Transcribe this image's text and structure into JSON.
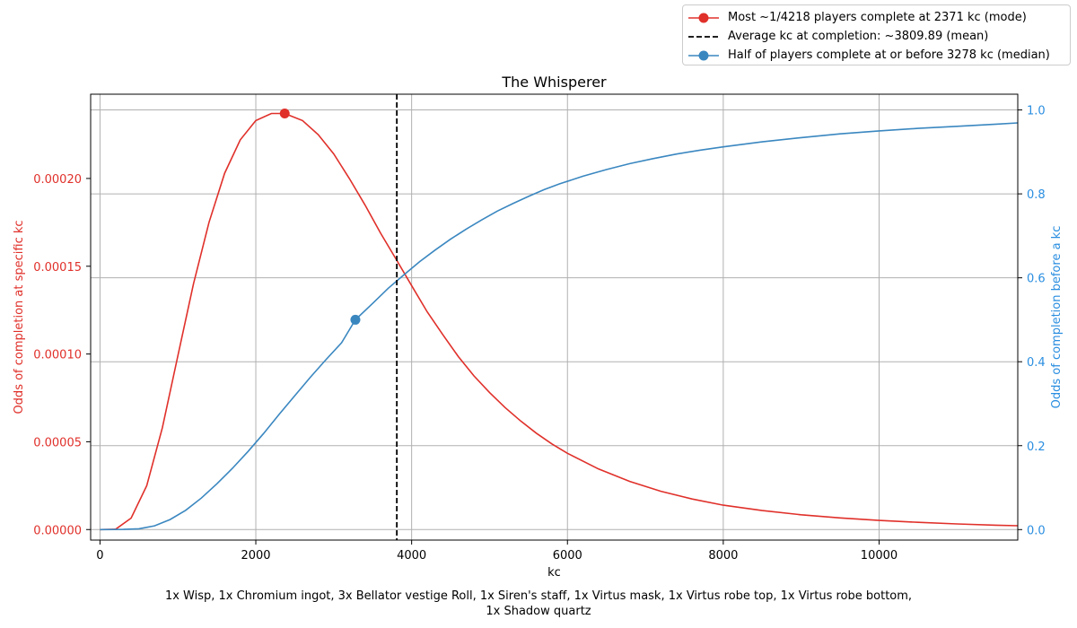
{
  "chart_data": {
    "type": "line",
    "title": "The Whisperer",
    "xlabel": "kc",
    "ylabel_left": "Odds of completion at specific kc",
    "ylabel_right": "Odds of completion before a kc",
    "xlim": [
      -120,
      11780
    ],
    "ylim_left": [
      -6e-06,
      0.000248
    ],
    "ylim_right": [
      -0.025,
      1.0375
    ],
    "x_ticks": [
      "0",
      "2000",
      "4000",
      "6000",
      "8000",
      "10000"
    ],
    "y_left_ticks": [
      "0.00000",
      "0.00005",
      "0.00010",
      "0.00015",
      "0.00020"
    ],
    "y_right_ticks": [
      "0.0",
      "0.2",
      "0.4",
      "0.6",
      "0.8",
      "1.0"
    ],
    "grid": true,
    "legend_position": "top-right, above plot",
    "colors": {
      "pmf": "#e0302a",
      "cdf": "#3a87c0",
      "mean": "#000000",
      "left_axis": "#e0302a",
      "right_axis": "#2a8ee0"
    },
    "series": [
      {
        "name": "Most ~1/4218 players complete at 2371 kc (mode)",
        "axis": "left",
        "x": [
          0,
          200,
          400,
          600,
          800,
          1000,
          1200,
          1400,
          1600,
          1800,
          2000,
          2200,
          2371,
          2600,
          2800,
          3000,
          3200,
          3400,
          3600,
          3800,
          4000,
          4200,
          4400,
          4600,
          4800,
          5000,
          5200,
          5400,
          5600,
          5800,
          6000,
          6400,
          6800,
          7200,
          7600,
          8000,
          8500,
          9000,
          9500,
          10000,
          10500,
          11000,
          11500,
          11780
        ],
        "values": [
          0,
          2e-07,
          6.5e-06,
          2.5e-05,
          5.8e-05,
          9.9e-05,
          0.00014,
          0.000175,
          0.000203,
          0.000222,
          0.000233,
          0.000237,
          0.000237,
          0.000233,
          0.000225,
          0.000214,
          0.0002,
          0.000185,
          0.000169,
          0.000154,
          0.000139,
          0.000124,
          0.000111,
          9.85e-05,
          8.75e-05,
          7.8e-05,
          6.95e-05,
          6.18e-05,
          5.49e-05,
          4.88e-05,
          4.34e-05,
          3.45e-05,
          2.74e-05,
          2.18e-05,
          1.74e-05,
          1.39e-05,
          1.08e-05,
          8.4e-06,
          6.6e-06,
          5.2e-06,
          4.1e-06,
          3.2e-06,
          2.5e-06,
          2.2e-06
        ]
      },
      {
        "name": "Half of players complete at or before 3278 kc (median)",
        "axis": "right",
        "x": [
          0,
          300,
          500,
          700,
          900,
          1100,
          1300,
          1500,
          1700,
          1900,
          2100,
          2300,
          2500,
          2700,
          2900,
          3100,
          3278,
          3500,
          3700,
          3900,
          4100,
          4300,
          4500,
          4700,
          4900,
          5100,
          5300,
          5500,
          5700,
          5900,
          6200,
          6500,
          6800,
          7100,
          7400,
          7700,
          8000,
          8500,
          9000,
          9500,
          10000,
          10500,
          11000,
          11500,
          11780
        ],
        "values": [
          0,
          0.0005,
          0.002,
          0.009,
          0.024,
          0.046,
          0.075,
          0.109,
          0.146,
          0.186,
          0.229,
          0.275,
          0.319,
          0.363,
          0.405,
          0.445,
          0.5,
          0.539,
          0.575,
          0.607,
          0.638,
          0.666,
          0.692,
          0.716,
          0.738,
          0.759,
          0.777,
          0.794,
          0.81,
          0.824,
          0.842,
          0.858,
          0.872,
          0.884,
          0.895,
          0.904,
          0.912,
          0.924,
          0.934,
          0.943,
          0.95,
          0.956,
          0.961,
          0.966,
          0.969
        ]
      },
      {
        "name": "Average kc at completion: ~3809.89 (mean)",
        "axis": "left",
        "type": "vline",
        "x": 3809.89,
        "style": "dashed"
      }
    ],
    "markers": [
      {
        "series": "mode",
        "x": 2371,
        "y": 0.000237,
        "axis": "left"
      },
      {
        "series": "median",
        "x": 3278,
        "y": 0.5,
        "axis": "right"
      }
    ],
    "caption_lines": [
      "1x Wisp, 1x Chromium ingot, 3x Bellator vestige Roll, 1x Siren's staff, 1x Virtus mask, 1x Virtus robe top, 1x Virtus robe bottom,",
      "1x Shadow quartz"
    ]
  }
}
